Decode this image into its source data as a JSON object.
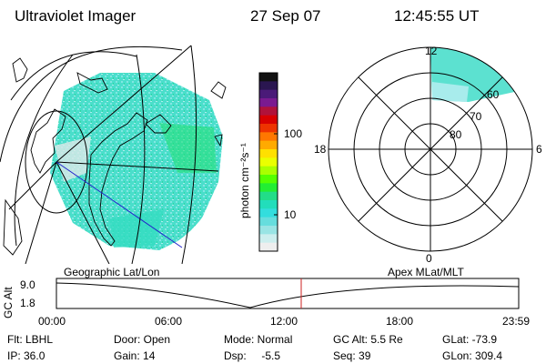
{
  "header": {
    "title": "Ultraviolet Imager",
    "date": "27 Sep 07",
    "time": "12:45:55 UT"
  },
  "colorbar": {
    "unit_label": "photon cm⁻²s⁻¹",
    "tick_labels": [
      "100",
      "10"
    ],
    "colors": [
      "#111111",
      "#2a1650",
      "#4a1a78",
      "#7a1a90",
      "#b0123a",
      "#d80000",
      "#ee3300",
      "#ff7700",
      "#ffaa00",
      "#ffe000",
      "#eaff00",
      "#aaff00",
      "#55ff00",
      "#22ee33",
      "#22dd88",
      "#22ddbb",
      "#33dddd",
      "#66dddd",
      "#99e4e4",
      "#cceeee",
      "#eeeeee"
    ]
  },
  "polar": {
    "clock_labels": [
      "12",
      "18",
      "6",
      "0"
    ],
    "lat_labels": [
      "60",
      "70",
      "80"
    ]
  },
  "map_labels": {
    "geo": "Geographic Lat/Lon",
    "apex": "Apex MLat/MLT"
  },
  "altitude_plot": {
    "axis_label": "GC Alt",
    "y_ticks": [
      "9.0",
      "1.8"
    ],
    "x_ticks": [
      "00:00",
      "06:00",
      "12:00",
      "18:00",
      "23:59"
    ]
  },
  "status": {
    "col1": [
      "Flt: LBHL",
      "IP: 36.0"
    ],
    "col2": [
      "Door: Open",
      "Gain: 14"
    ],
    "col3": [
      "Mode: Normal",
      "Dsp:     -5.5"
    ],
    "col4": [
      "GC Alt: 5.5 Re",
      "Seq: 39"
    ],
    "col5": [
      "GLat: -73.9",
      "GLon: 309.4"
    ]
  }
}
